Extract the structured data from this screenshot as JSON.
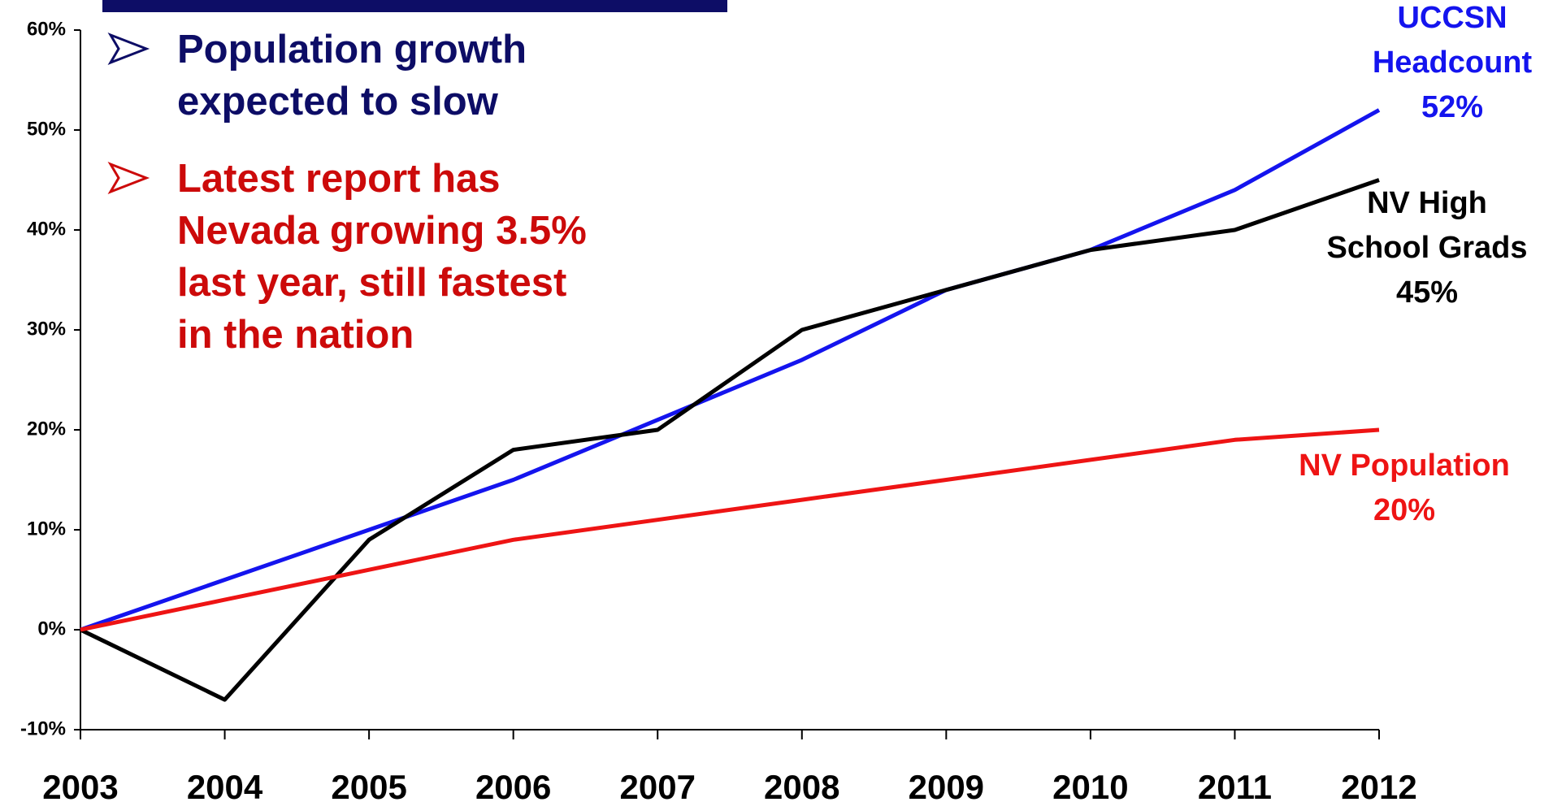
{
  "chart_data": {
    "type": "line",
    "categories": [
      "2003",
      "2004",
      "2005",
      "2006",
      "2007",
      "2008",
      "2009",
      "2010",
      "2011",
      "2012"
    ],
    "series": [
      {
        "name": "UCCSN Headcount",
        "color": "#1414ee",
        "values": [
          0,
          5,
          10,
          15,
          21,
          27,
          34,
          38,
          44,
          52
        ]
      },
      {
        "name": "NV High School Grads",
        "color": "#000000",
        "values": [
          0,
          -7,
          9,
          18,
          20,
          30,
          34,
          38,
          40,
          45
        ]
      },
      {
        "name": "NV Population",
        "color": "#ee1414",
        "values": [
          0,
          3,
          6,
          9,
          11,
          13,
          15,
          17,
          19,
          20
        ]
      }
    ],
    "ylim": [
      -10,
      60
    ],
    "yticks": [
      {
        "value": -10,
        "label": "-10%"
      },
      {
        "value": 0,
        "label": "0%"
      },
      {
        "value": 10,
        "label": "10%"
      },
      {
        "value": 20,
        "label": "20%"
      },
      {
        "value": 30,
        "label": "30%"
      },
      {
        "value": 40,
        "label": "40%"
      },
      {
        "value": 50,
        "label": "50%"
      },
      {
        "value": 60,
        "label": "60%"
      }
    ],
    "series_labels": [
      {
        "lines": [
          "UCCSN",
          "Headcount",
          "52%"
        ],
        "color": "#1414ee"
      },
      {
        "lines": [
          "NV High",
          "School Grads",
          "45%"
        ],
        "color": "#000000"
      },
      {
        "lines": [
          "NV Population",
          "20%"
        ],
        "color": "#ee1414"
      }
    ],
    "bullets": [
      {
        "lines": [
          "Population growth",
          "expected to slow"
        ],
        "color": "#0d0d66"
      },
      {
        "lines": [
          "Latest report has",
          "Nevada growing 3.5%",
          "last year, still fastest",
          "in the nation"
        ],
        "color": "#cc0a0a"
      }
    ]
  }
}
